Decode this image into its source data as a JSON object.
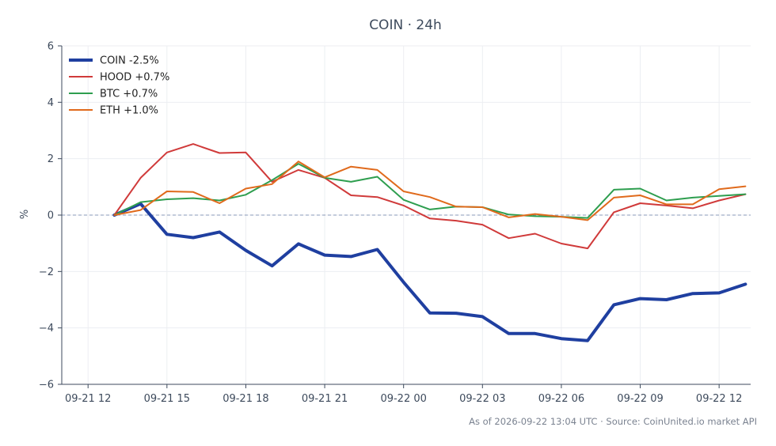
{
  "chart_data": {
    "type": "line",
    "title": "COIN · 24h",
    "xlabel": "",
    "ylabel": "%",
    "ylim": [
      -6,
      6
    ],
    "yticks": [
      -6,
      -4,
      -2,
      0,
      2,
      4,
      6
    ],
    "ytick_labels": [
      "−6",
      "−4",
      "−2",
      "0",
      "2",
      "4",
      "6"
    ],
    "xlim": [
      -1,
      25.2
    ],
    "xticks": [
      0,
      3,
      6,
      9,
      12,
      15,
      18,
      21,
      24
    ],
    "xtick_labels": [
      "09-21 12",
      "09-21 15",
      "09-21 18",
      "09-21 21",
      "09-22 00",
      "09-22 03",
      "09-22 06",
      "09-22 09",
      "09-22 12"
    ],
    "grid": true,
    "zero_line": true,
    "legend_position": "top-left",
    "x": [
      1,
      2,
      3,
      4,
      5,
      6,
      7,
      8,
      9,
      10,
      11,
      12,
      13,
      14,
      15,
      16,
      17,
      18,
      19,
      20,
      21,
      22,
      23,
      24,
      25
    ],
    "series": [
      {
        "name": "COIN -2.5%",
        "color": "#1f3fa0",
        "width": 4,
        "values": [
          0,
          0.4,
          -0.68,
          -0.8,
          -0.6,
          -1.25,
          -1.8,
          -1.02,
          -1.42,
          -1.47,
          -1.22,
          -2.38,
          -3.47,
          -3.48,
          -3.6,
          -4.2,
          -4.2,
          -4.38,
          -4.45,
          -3.18,
          -2.96,
          -3.0,
          -2.78,
          -2.76,
          -2.45
        ]
      },
      {
        "name": "HOOD +0.7%",
        "color": "#d03a3a",
        "width": 2,
        "values": [
          0,
          1.32,
          2.22,
          2.52,
          2.2,
          2.22,
          1.18,
          1.6,
          1.32,
          0.7,
          0.64,
          0.34,
          -0.12,
          -0.2,
          -0.34,
          -0.82,
          -0.66,
          -1.01,
          -1.18,
          0.1,
          0.42,
          0.34,
          0.24,
          0.52,
          0.74
        ]
      },
      {
        "name": "BTC +0.7%",
        "color": "#2e9e4f",
        "width": 2,
        "values": [
          0,
          0.46,
          0.56,
          0.6,
          0.52,
          0.72,
          1.24,
          1.82,
          1.32,
          1.18,
          1.36,
          0.54,
          0.2,
          0.3,
          0.28,
          0.02,
          -0.04,
          -0.06,
          -0.1,
          0.9,
          0.94,
          0.52,
          0.62,
          0.68,
          0.74
        ]
      },
      {
        "name": "ETH +1.0%",
        "color": "#e06a1c",
        "width": 2,
        "values": [
          0,
          0.18,
          0.84,
          0.82,
          0.42,
          0.94,
          1.1,
          1.9,
          1.34,
          1.72,
          1.6,
          0.84,
          0.64,
          0.3,
          0.28,
          -0.08,
          0.04,
          -0.06,
          -0.18,
          0.62,
          0.7,
          0.38,
          0.38,
          0.92,
          1.02
        ]
      }
    ],
    "footer": "As of 2026-09-22 13:04 UTC · Source: CoinUnited.io market API"
  }
}
